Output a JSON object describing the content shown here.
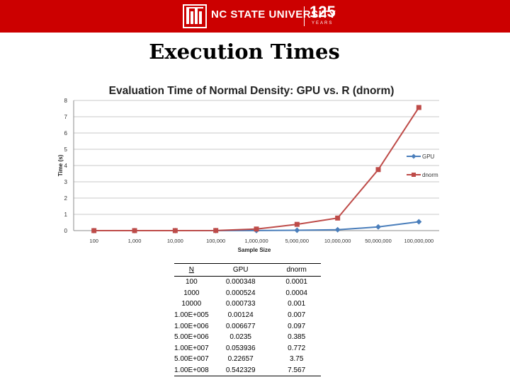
{
  "banner": {
    "brand": "NC STATE UNIVERSITY",
    "anniversary": "125",
    "anniversary_sub": "YEARS",
    "color": "#cc0000"
  },
  "slide": {
    "title": "Execution Times"
  },
  "chart_data": {
    "type": "line",
    "title": "Evaluation Time of Normal Density: GPU vs. R (dnorm)",
    "xlabel": "Sample Size",
    "ylabel": "Time (s)",
    "categories": [
      "100",
      "1,000",
      "10,000",
      "100,000",
      "1,000,000",
      "5,000,000",
      "10,000,000",
      "50,000,000",
      "100,000,000"
    ],
    "ylim": [
      0,
      8
    ],
    "yticks": [
      0,
      1,
      2,
      3,
      4,
      5,
      6,
      7,
      8
    ],
    "grid": true,
    "legend": "right",
    "series": [
      {
        "name": "GPU",
        "color": "#4a7ebb",
        "marker": "diamond",
        "values": [
          0.000348,
          0.000524,
          0.000733,
          0.00124,
          0.006677,
          0.0235,
          0.053936,
          0.22657,
          0.542329
        ]
      },
      {
        "name": "dnorm",
        "color": "#be4b48",
        "marker": "square",
        "values": [
          0.0001,
          0.0004,
          0.001,
          0.007,
          0.097,
          0.385,
          0.772,
          3.75,
          7.567
        ]
      }
    ]
  },
  "table": {
    "headers": [
      "N",
      "GPU",
      "dnorm"
    ],
    "rows": [
      [
        "100",
        "0.000348",
        "0.0001"
      ],
      [
        "1000",
        "0.000524",
        "0.0004"
      ],
      [
        "10000",
        "0.000733",
        "0.001"
      ],
      [
        "1.00E+005",
        "0.00124",
        "0.007"
      ],
      [
        "1.00E+006",
        "0.006677",
        "0.097"
      ],
      [
        "5.00E+006",
        "0.0235",
        "0.385"
      ],
      [
        "1.00E+007",
        "0.053936",
        "0.772"
      ],
      [
        "5.00E+007",
        "0.22657",
        "3.75"
      ],
      [
        "1.00E+008",
        "0.542329",
        "7.567"
      ]
    ]
  }
}
